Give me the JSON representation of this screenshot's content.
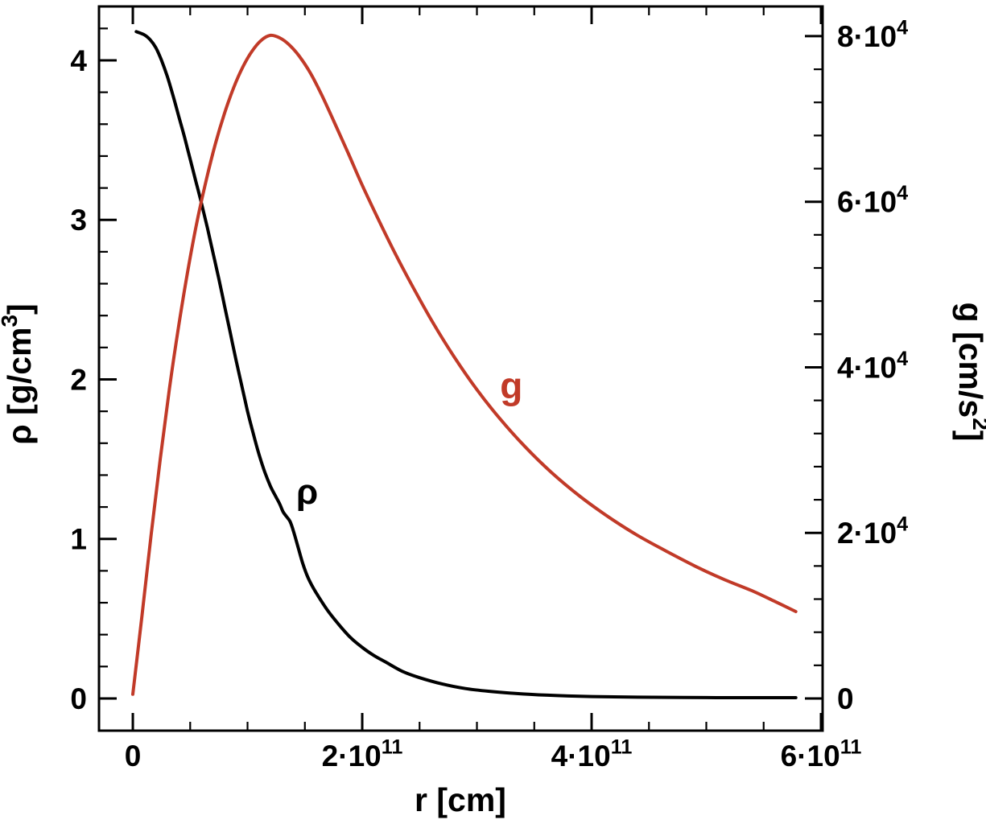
{
  "page": {
    "background_color": "#ffffff"
  },
  "chart_data": {
    "type": "line",
    "title": "",
    "description": "Density rho and gravitational acceleration g versus radius r",
    "frame_color": "#000000",
    "grid": false,
    "legend": "inline curve labels",
    "x_axis": {
      "label": "r [cm]",
      "label_parts": [
        {
          "t": "r [cm]"
        }
      ],
      "unit_scale": 100000000000.0,
      "lim": [
        -0.295,
        6.014
      ],
      "minor_step": 0.5,
      "major_ticks": [
        {
          "v": 0,
          "parts": [
            {
              "t": "0"
            }
          ]
        },
        {
          "v": 2,
          "parts": [
            {
              "t": "2·10"
            },
            {
              "t": "11",
              "sup": true
            }
          ]
        },
        {
          "v": 4,
          "parts": [
            {
              "t": "4·10"
            },
            {
              "t": "11",
              "sup": true
            }
          ]
        },
        {
          "v": 6,
          "parts": [
            {
              "t": "6·10"
            },
            {
              "t": "11",
              "sup": true
            }
          ]
        }
      ]
    },
    "left_axis": {
      "label": "ρ [g/cm³]",
      "label_parts": [
        {
          "t": "ρ [g/cm"
        },
        {
          "t": "3",
          "sup": true
        },
        {
          "t": "]"
        }
      ],
      "unit_scale": 1,
      "lim": [
        -0.202,
        4.338
      ],
      "minor_step": 0.2,
      "major_ticks": [
        {
          "v": 0,
          "parts": [
            {
              "t": "0"
            }
          ]
        },
        {
          "v": 1,
          "parts": [
            {
              "t": "1"
            }
          ]
        },
        {
          "v": 2,
          "parts": [
            {
              "t": "2"
            }
          ]
        },
        {
          "v": 3,
          "parts": [
            {
              "t": "3"
            }
          ]
        },
        {
          "v": 4,
          "parts": [
            {
              "t": "4"
            }
          ]
        }
      ]
    },
    "right_axis": {
      "label": "g [cm/s²]",
      "label_parts": [
        {
          "t": "g [cm/s"
        },
        {
          "t": "2",
          "sup": true
        },
        {
          "t": "]"
        }
      ],
      "unit_scale": 10000.0,
      "lim": [
        -0.389,
        8.359
      ],
      "minor_step": 0.4,
      "major_ticks": [
        {
          "v": 0,
          "parts": [
            {
              "t": "0"
            }
          ]
        },
        {
          "v": 2,
          "parts": [
            {
              "t": "2·10"
            },
            {
              "t": "4",
              "sup": true
            }
          ]
        },
        {
          "v": 4,
          "parts": [
            {
              "t": "4·10"
            },
            {
              "t": "4",
              "sup": true
            }
          ]
        },
        {
          "v": 6,
          "parts": [
            {
              "t": "6·10"
            },
            {
              "t": "4",
              "sup": true
            }
          ]
        },
        {
          "v": 8,
          "parts": [
            {
              "t": "8·10"
            },
            {
              "t": "4",
              "sup": true
            }
          ]
        }
      ]
    },
    "series": [
      {
        "name": "rho",
        "label": "ρ",
        "axis": "left",
        "color": "#000000",
        "stroke_width": 4,
        "x": [
          0.03,
          0.1,
          0.15,
          0.2,
          0.25,
          0.3,
          0.35,
          0.4,
          0.45,
          0.5,
          0.55,
          0.6,
          0.65,
          0.7,
          0.75,
          0.8,
          0.85,
          0.9,
          0.95,
          1.0,
          1.05,
          1.1,
          1.15,
          1.2,
          1.25,
          1.28,
          1.31,
          1.34,
          1.37,
          1.4,
          1.44,
          1.48,
          1.52,
          1.56,
          1.6,
          1.7,
          1.8,
          1.9,
          2.0,
          2.1,
          2.2,
          2.35,
          2.5,
          2.7,
          2.9,
          3.1,
          3.4,
          3.7,
          4.0,
          4.4,
          4.8,
          5.2,
          5.6,
          5.78
        ],
        "y": [
          4.18,
          4.16,
          4.13,
          4.08,
          4.0,
          3.9,
          3.78,
          3.65,
          3.52,
          3.38,
          3.24,
          3.1,
          2.95,
          2.79,
          2.63,
          2.46,
          2.29,
          2.12,
          1.96,
          1.8,
          1.66,
          1.53,
          1.42,
          1.33,
          1.26,
          1.22,
          1.17,
          1.14,
          1.11,
          1.05,
          0.95,
          0.85,
          0.77,
          0.71,
          0.66,
          0.55,
          0.46,
          0.38,
          0.32,
          0.27,
          0.23,
          0.17,
          0.13,
          0.09,
          0.062,
          0.045,
          0.028,
          0.018,
          0.012,
          0.008,
          0.006,
          0.005,
          0.005,
          0.005
        ],
        "curve_label": {
          "text": "ρ",
          "x": 1.52,
          "y": 1.22,
          "font_size": 44
        }
      },
      {
        "name": "g",
        "label": "g",
        "axis": "right",
        "color": "#c13a28",
        "stroke_width": 4,
        "x": [
          0.0,
          0.08,
          0.16,
          0.24,
          0.32,
          0.4,
          0.48,
          0.56,
          0.64,
          0.72,
          0.8,
          0.88,
          0.96,
          1.04,
          1.12,
          1.2,
          1.28,
          1.36,
          1.45,
          1.55,
          1.65,
          1.76,
          1.88,
          2.0,
          2.15,
          2.3,
          2.45,
          2.62,
          2.8,
          3.0,
          3.2,
          3.42,
          3.65,
          3.9,
          4.15,
          4.4,
          4.65,
          4.9,
          5.15,
          5.4,
          5.6,
          5.78
        ],
        "y": [
          0.05,
          1.0,
          1.98,
          2.9,
          3.75,
          4.5,
          5.17,
          5.76,
          6.26,
          6.7,
          7.07,
          7.38,
          7.63,
          7.82,
          7.95,
          8.01,
          7.98,
          7.9,
          7.76,
          7.55,
          7.28,
          6.95,
          6.58,
          6.2,
          5.76,
          5.34,
          4.95,
          4.53,
          4.13,
          3.73,
          3.38,
          3.04,
          2.73,
          2.44,
          2.19,
          1.97,
          1.78,
          1.6,
          1.44,
          1.3,
          1.17,
          1.05
        ],
        "curve_label": {
          "text": "g",
          "x": 3.3,
          "y": 3.62,
          "font_size": 46
        }
      }
    ]
  }
}
